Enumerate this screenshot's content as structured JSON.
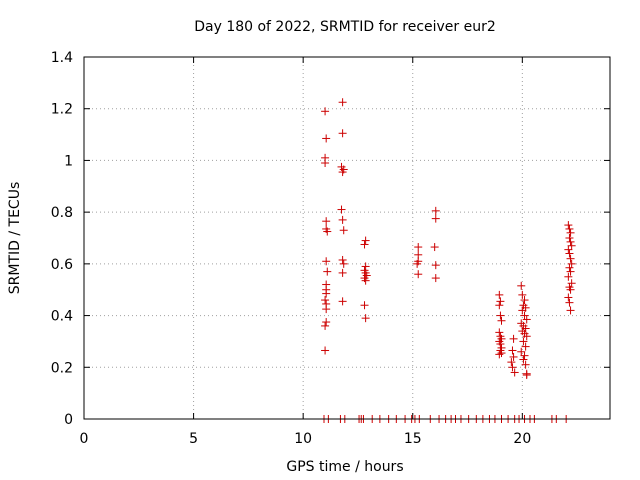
{
  "chart_data": {
    "type": "scatter",
    "title": "Day 180 of 2022, SRMTID for receiver eur2",
    "xlabel": "GPS time / hours",
    "ylabel": "SRMTID / TECUs",
    "xlim": [
      0,
      24
    ],
    "ylim": [
      0,
      1.4
    ],
    "xticks": [
      0,
      5,
      10,
      15,
      20
    ],
    "xtick_labels": [
      "0",
      "5",
      "10",
      "15",
      "20"
    ],
    "yticks": [
      0,
      0.2,
      0.4,
      0.6,
      0.8,
      1.0,
      1.2,
      1.4
    ],
    "ytick_labels": [
      "0",
      "0.2",
      "0.4",
      "0.6",
      "0.8",
      "1",
      "1.2",
      "1.4"
    ],
    "grid": true,
    "marker": "+",
    "color": "#cc0000",
    "series": [
      {
        "name": "SRMTID",
        "x": [
          11.0,
          11.05,
          11.0,
          11.0,
          11.05,
          11.05,
          11.1,
          11.05,
          11.1,
          11.05,
          11.05,
          11.0,
          11.05,
          11.05,
          11.05,
          11.0,
          11.0,
          11.05,
          11.8,
          11.8,
          11.75,
          11.85,
          11.8,
          11.75,
          11.8,
          11.85,
          11.8,
          11.85,
          11.8,
          11.8,
          12.85,
          12.8,
          12.85,
          12.8,
          12.85,
          12.9,
          12.8,
          12.85,
          12.8,
          12.85,
          15.25,
          15.25,
          15.25,
          15.2,
          15.25,
          16.05,
          16.05,
          16.0,
          16.05,
          16.05,
          18.95,
          19.0,
          18.95,
          19.0,
          19.05,
          18.95,
          19.0,
          19.05,
          18.95,
          19.0,
          19.05,
          19.0,
          19.05,
          18.95,
          19.55,
          19.6,
          19.5,
          19.55,
          19.65,
          19.6,
          19.95,
          20.0,
          20.1,
          20.05,
          20.15,
          20.0,
          20.1,
          20.2,
          19.95,
          20.05,
          20.15,
          20.0,
          20.1,
          20.2,
          20.05,
          20.15,
          19.95,
          20.1,
          20.05,
          20.15,
          20.2,
          20.2,
          22.1,
          22.15,
          22.2,
          22.15,
          22.2,
          22.25,
          22.1,
          22.15,
          22.2,
          22.25,
          22.15,
          22.2,
          22.1,
          22.25,
          22.15,
          22.2,
          22.1,
          22.15,
          22.2,
          10.95,
          11.15,
          11.7,
          11.9,
          12.55,
          12.65,
          12.75,
          13.15,
          13.5,
          13.9,
          14.25,
          14.65,
          14.95,
          15.1,
          15.3,
          15.8,
          16.2,
          16.5,
          16.75,
          16.95,
          17.2,
          17.55,
          17.9,
          18.2,
          18.5,
          18.75,
          19.05,
          19.35,
          19.65,
          19.85,
          20.1,
          20.35,
          20.55,
          21.35,
          21.55,
          22.0
        ],
        "y": [
          1.19,
          1.085,
          1.01,
          0.99,
          0.765,
          0.735,
          0.725,
          0.61,
          0.57,
          0.52,
          0.5,
          0.46,
          0.445,
          0.425,
          0.375,
          0.36,
          0.265,
          0.485,
          1.225,
          1.105,
          0.975,
          0.965,
          0.955,
          0.81,
          0.77,
          0.73,
          0.615,
          0.6,
          0.565,
          0.455,
          0.69,
          0.675,
          0.59,
          0.575,
          0.565,
          0.555,
          0.545,
          0.535,
          0.44,
          0.39,
          0.665,
          0.635,
          0.61,
          0.6,
          0.56,
          0.805,
          0.775,
          0.665,
          0.595,
          0.545,
          0.48,
          0.455,
          0.44,
          0.4,
          0.38,
          0.335,
          0.32,
          0.31,
          0.3,
          0.29,
          0.275,
          0.265,
          0.255,
          0.25,
          0.265,
          0.24,
          0.22,
          0.2,
          0.18,
          0.31,
          0.515,
          0.48,
          0.46,
          0.44,
          0.43,
          0.42,
          0.4,
          0.385,
          0.37,
          0.36,
          0.35,
          0.34,
          0.33,
          0.32,
          0.3,
          0.28,
          0.26,
          0.245,
          0.23,
          0.21,
          0.175,
          0.17,
          0.75,
          0.735,
          0.72,
          0.7,
          0.685,
          0.67,
          0.655,
          0.64,
          0.62,
          0.6,
          0.585,
          0.57,
          0.55,
          0.525,
          0.51,
          0.5,
          0.47,
          0.45,
          0.42,
          0,
          0,
          0,
          0,
          0,
          0,
          0,
          0,
          0,
          0,
          0,
          0,
          0,
          0,
          0,
          0,
          0,
          0,
          0,
          0,
          0,
          0,
          0,
          0,
          0,
          0,
          0,
          0,
          0,
          0,
          0,
          0,
          0,
          0,
          0,
          0
        ]
      }
    ]
  }
}
